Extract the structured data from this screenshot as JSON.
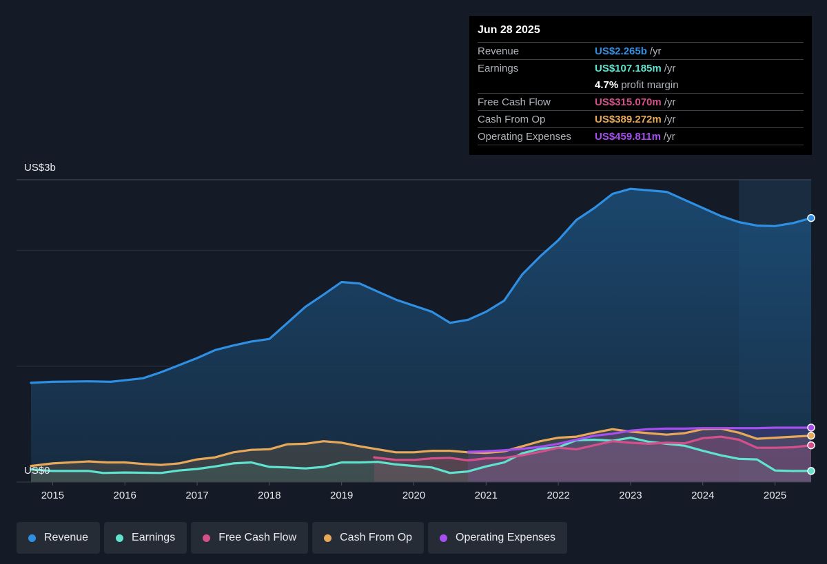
{
  "tooltip": {
    "date": "Jun 28 2025",
    "revenue": {
      "label": "Revenue",
      "value": "US$2.265b",
      "unit": "/yr"
    },
    "earnings": {
      "label": "Earnings",
      "value": "US$107.185m",
      "unit": "/yr"
    },
    "margin": {
      "value": "4.7%",
      "unit": "profit margin"
    },
    "fcf": {
      "label": "Free Cash Flow",
      "value": "US$315.070m",
      "unit": "/yr"
    },
    "cfo": {
      "label": "Cash From Op",
      "value": "US$389.272m",
      "unit": "/yr"
    },
    "opex": {
      "label": "Operating Expenses",
      "value": "US$459.811m",
      "unit": "/yr"
    }
  },
  "legend": [
    {
      "label": "Revenue",
      "color": "#2e8fe3"
    },
    {
      "label": "Earnings",
      "color": "#5fe3cf"
    },
    {
      "label": "Free Cash Flow",
      "color": "#d4508a"
    },
    {
      "label": "Cash From Op",
      "color": "#e8a859"
    },
    {
      "label": "Operating Expenses",
      "color": "#a74ef0"
    }
  ],
  "chart_data": {
    "type": "area",
    "y_top_label": "US$3b",
    "y_zero_label": "US$0",
    "ylim": [
      0,
      3000
    ],
    "y_gridlines": [
      1150,
      2300
    ],
    "xlim": [
      2014.5,
      2025.5
    ],
    "x_ticks": [
      "2015",
      "2016",
      "2017",
      "2018",
      "2019",
      "2020",
      "2021",
      "2022",
      "2023",
      "2024",
      "2025"
    ],
    "highlight_start": 2024.5,
    "series": [
      {
        "name": "Revenue",
        "color": "#2e8fe3",
        "x": [
          2014.7,
          2015.0,
          2015.5,
          2015.8,
          2016.0,
          2016.25,
          2016.5,
          2016.75,
          2017.0,
          2017.25,
          2017.5,
          2017.75,
          2018.0,
          2018.25,
          2018.5,
          2018.75,
          2019.0,
          2019.25,
          2019.5,
          2019.75,
          2020.0,
          2020.25,
          2020.5,
          2020.75,
          2021.0,
          2021.25,
          2021.5,
          2021.75,
          2022.0,
          2022.25,
          2022.5,
          2022.75,
          2023.0,
          2023.25,
          2023.5,
          2023.75,
          2024.0,
          2024.25,
          2024.5,
          2024.75,
          2025.0,
          2025.25,
          2025.5
        ],
        "values": [
          985,
          995,
          1000,
          995,
          1010,
          1030,
          1090,
          1160,
          1230,
          1310,
          1355,
          1395,
          1420,
          1580,
          1740,
          1860,
          1985,
          1970,
          1890,
          1810,
          1750,
          1690,
          1580,
          1610,
          1690,
          1800,
          2060,
          2240,
          2400,
          2600,
          2720,
          2860,
          2910,
          2895,
          2880,
          2800,
          2720,
          2640,
          2580,
          2545,
          2540,
          2570,
          2620
        ]
      },
      {
        "name": "Earnings",
        "color": "#5fe3cf",
        "x": [
          2014.7,
          2015.0,
          2015.5,
          2015.7,
          2016.0,
          2016.5,
          2016.75,
          2017.0,
          2017.25,
          2017.5,
          2017.75,
          2018.0,
          2018.25,
          2018.5,
          2018.75,
          2019.0,
          2019.25,
          2019.5,
          2019.75,
          2020.0,
          2020.25,
          2020.5,
          2020.75,
          2021.0,
          2021.25,
          2021.5,
          2021.75,
          2022.0,
          2022.25,
          2022.5,
          2022.75,
          2023.0,
          2023.25,
          2023.5,
          2023.75,
          2024.0,
          2024.25,
          2024.5,
          2024.75,
          2025.0,
          2025.25,
          2025.5
        ],
        "values": [
          125,
          110,
          110,
          90,
          95,
          90,
          115,
          130,
          155,
          185,
          195,
          150,
          145,
          135,
          150,
          195,
          195,
          200,
          175,
          160,
          145,
          90,
          105,
          155,
          195,
          285,
          330,
          345,
          415,
          420,
          410,
          440,
          400,
          380,
          360,
          310,
          265,
          230,
          225,
          115,
          110,
          110
        ]
      },
      {
        "name": "Free Cash Flow",
        "color": "#d4508a",
        "x": [
          2019.45,
          2019.75,
          2020.0,
          2020.25,
          2020.5,
          2020.75,
          2021.0,
          2021.25,
          2021.5,
          2021.75,
          2022.0,
          2022.25,
          2022.5,
          2022.75,
          2023.0,
          2023.25,
          2023.5,
          2023.75,
          2024.0,
          2024.25,
          2024.5,
          2024.75,
          2025.0,
          2025.25,
          2025.5
        ],
        "values": [
          245,
          220,
          220,
          235,
          240,
          215,
          235,
          240,
          265,
          300,
          340,
          325,
          365,
          405,
          390,
          380,
          390,
          385,
          435,
          450,
          420,
          340,
          340,
          345,
          365
        ]
      },
      {
        "name": "Cash From Op",
        "color": "#e8a859",
        "x": [
          2014.7,
          2015.0,
          2015.5,
          2015.75,
          2016.0,
          2016.25,
          2016.5,
          2016.75,
          2017.0,
          2017.25,
          2017.5,
          2017.75,
          2018.0,
          2018.25,
          2018.5,
          2018.75,
          2019.0,
          2019.25,
          2019.5,
          2019.75,
          2020.0,
          2020.25,
          2020.5,
          2020.75,
          2021.0,
          2021.25,
          2021.5,
          2021.75,
          2022.0,
          2022.25,
          2022.5,
          2022.75,
          2023.0,
          2023.25,
          2023.5,
          2023.75,
          2024.0,
          2024.25,
          2024.5,
          2024.75,
          2025.0,
          2025.25,
          2025.5
        ],
        "values": [
          160,
          185,
          205,
          195,
          195,
          180,
          170,
          185,
          225,
          245,
          295,
          320,
          325,
          375,
          380,
          405,
          390,
          355,
          325,
          295,
          295,
          310,
          310,
          295,
          290,
          305,
          355,
          405,
          440,
          450,
          490,
          525,
          500,
          485,
          470,
          485,
          525,
          530,
          490,
          430,
          440,
          450,
          460
        ]
      },
      {
        "name": "Operating Expenses",
        "color": "#a74ef0",
        "x": [
          2020.75,
          2021.0,
          2021.25,
          2021.5,
          2021.75,
          2022.0,
          2022.25,
          2022.5,
          2022.75,
          2023.0,
          2023.25,
          2023.5,
          2023.75,
          2024.0,
          2024.25,
          2024.5,
          2024.75,
          2025.0,
          2025.25,
          2025.5
        ],
        "values": [
          300,
          305,
          315,
          330,
          350,
          380,
          420,
          460,
          480,
          510,
          525,
          530,
          530,
          535,
          535,
          535,
          535,
          540,
          540,
          540
        ]
      }
    ]
  }
}
